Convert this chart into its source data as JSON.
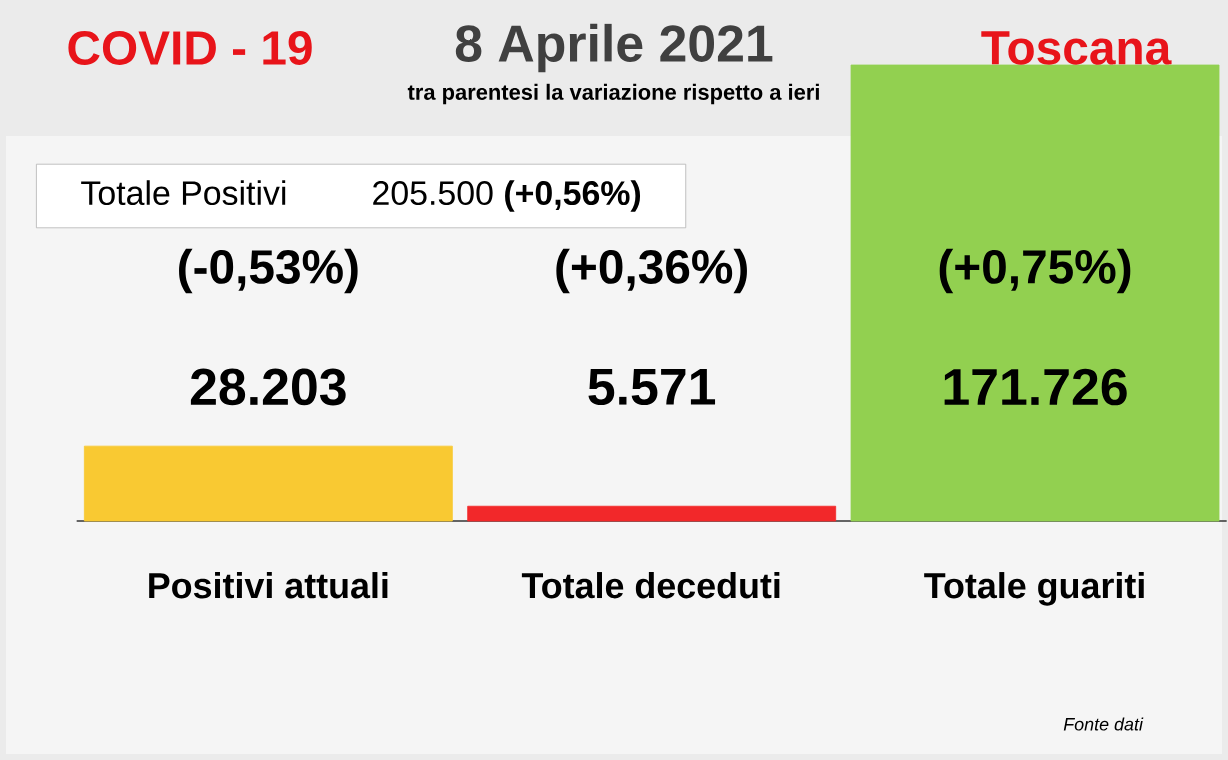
{
  "chart_data": {
    "type": "bar",
    "title": "8 Aprile 2021",
    "subtitle": "tra parentesi la variazione rispetto a ieri",
    "categories": [
      "Positivi attuali",
      "Totale deceduti",
      "Totale guariti"
    ],
    "values": [
      28203,
      5571,
      171726
    ],
    "colors": [
      "#f9c932",
      "#f2282a",
      "#92d050"
    ],
    "value_labels": [
      "28.203",
      "5.571",
      "171.726"
    ],
    "annotations": [
      "(-0,53%)",
      "(+0,36%)",
      "(+0,75%)",
      "COVID - 19",
      "Toscana",
      "Totale Positivi",
      "205.500 **(+0,56%)**",
      "Fonte dati"
    ]
  }
}
